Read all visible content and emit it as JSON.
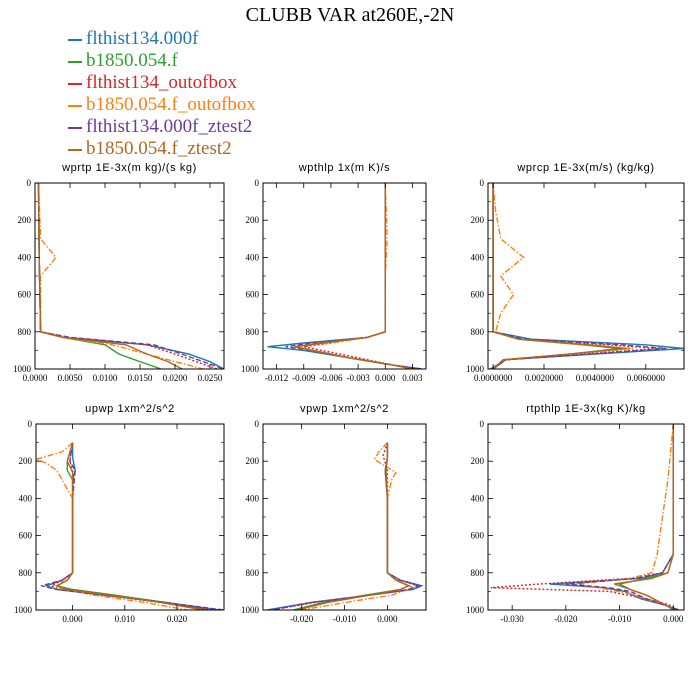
{
  "figure": {
    "title": "CLUBB VAR at260E,-2N"
  },
  "legend": [
    {
      "name": "flthist134.000f",
      "color": "#1f77b4",
      "dash": "solid"
    },
    {
      "name": "b1850.054.f",
      "color": "#2ca02c",
      "dash": "solid"
    },
    {
      "name": "flthist134_outofbox",
      "color": "#d62728",
      "dash": "dotted"
    },
    {
      "name": "b1850.054.f_outofbox",
      "color": "#ff7f0e",
      "dash": "dashdot"
    },
    {
      "name": "flthist134.000f_ztest2",
      "color": "#6a3d9a",
      "dash": "dashed"
    },
    {
      "name": "b1850.054.f_ztest2",
      "color": "#b5651d",
      "dash": "solid"
    }
  ],
  "chart_data": [
    {
      "type": "line",
      "title": "wprtp  1E-3x(m kg)/(s kg)",
      "xlim": [
        0,
        0.027
      ],
      "ylim": [
        0,
        1000
      ],
      "y_inverted": true,
      "x_ticks": [
        "0.0000",
        "0.0050",
        "0.0100",
        "0.0150",
        "0.0200",
        "0.0250"
      ],
      "x_tick_values": [
        0,
        0.005,
        0.01,
        0.015,
        0.02,
        0.025
      ],
      "y_ticks": [
        "0",
        "200",
        "400",
        "600",
        "800",
        "1000"
      ],
      "series": [
        {
          "y": [
            0,
            400,
            800,
            830,
            870,
            920,
            960,
            1000
          ],
          "x": [
            0.0005,
            0.0006,
            0.0008,
            0.004,
            0.016,
            0.022,
            0.025,
            0.027
          ]
        },
        {
          "y": [
            0,
            400,
            800,
            830,
            870,
            920,
            960,
            1000
          ],
          "x": [
            0.0005,
            0.0006,
            0.0008,
            0.004,
            0.01,
            0.012,
            0.015,
            0.018
          ]
        },
        {
          "y": [
            0,
            400,
            800,
            830,
            870,
            920,
            960,
            1000
          ],
          "x": [
            0.0005,
            0.0006,
            0.0008,
            0.005,
            0.016,
            0.02,
            0.023,
            0.026
          ]
        },
        {
          "y": [
            0,
            300,
            400,
            500,
            800,
            830,
            870,
            920,
            960,
            1000
          ],
          "x": [
            0.0005,
            0.0008,
            0.003,
            0.0008,
            0.0008,
            0.004,
            0.011,
            0.016,
            0.02,
            0.024
          ]
        },
        {
          "y": [
            0,
            400,
            800,
            830,
            870,
            920,
            960,
            1000
          ],
          "x": [
            0.0005,
            0.0006,
            0.0008,
            0.005,
            0.017,
            0.021,
            0.024,
            0.027
          ]
        },
        {
          "y": [
            0,
            400,
            800,
            830,
            870,
            920,
            960,
            1000
          ],
          "x": [
            0.0005,
            0.0006,
            0.0008,
            0.004,
            0.013,
            0.016,
            0.019,
            0.021
          ]
        }
      ]
    },
    {
      "type": "line",
      "title": "wpthlp  1x(m K)/s",
      "xlim": [
        -0.0135,
        0.0045
      ],
      "ylim": [
        0,
        1000
      ],
      "y_inverted": true,
      "x_ticks": [
        "-0.012",
        "-0.009",
        "-0.006",
        "-0.003",
        "0.000",
        "0.003"
      ],
      "x_tick_values": [
        -0.012,
        -0.009,
        -0.006,
        -0.003,
        0,
        0.003
      ],
      "y_ticks": [
        "0",
        "200",
        "400",
        "600",
        "800",
        "1000"
      ],
      "series": [
        {
          "y": [
            0,
            500,
            800,
            830,
            860,
            880,
            900,
            940,
            980,
            1000
          ],
          "x": [
            0.0,
            0.0,
            0.0,
            -0.002,
            -0.009,
            -0.013,
            -0.009,
            -0.004,
            0.001,
            0.004
          ]
        },
        {
          "y": [
            0,
            500,
            800,
            830,
            860,
            880,
            900,
            940,
            980,
            1000
          ],
          "x": [
            0.0,
            0.0,
            0.0,
            -0.002,
            -0.007,
            -0.01,
            -0.008,
            -0.004,
            0.001,
            0.003
          ]
        },
        {
          "y": [
            0,
            500,
            800,
            830,
            860,
            880,
            900,
            940,
            980,
            1000
          ],
          "x": [
            0.0,
            0.0,
            0.0,
            -0.002,
            -0.006,
            -0.009,
            -0.007,
            -0.003,
            0.001,
            0.004
          ]
        },
        {
          "y": [
            0,
            300,
            500,
            800,
            830,
            860,
            880,
            900,
            940,
            980,
            1000
          ],
          "x": [
            0.0,
            0.0002,
            0.0,
            0.0,
            -0.002,
            -0.006,
            -0.01,
            -0.008,
            -0.004,
            0.001,
            0.003
          ]
        },
        {
          "y": [
            0,
            500,
            800,
            830,
            860,
            880,
            900,
            940,
            980,
            1000
          ],
          "x": [
            0.0,
            0.0,
            0.0,
            -0.002,
            -0.008,
            -0.011,
            -0.008,
            -0.004,
            0.001,
            0.004
          ]
        },
        {
          "y": [
            0,
            500,
            800,
            830,
            860,
            880,
            900,
            940,
            980,
            1000
          ],
          "x": [
            0.0,
            0.0,
            0.0,
            -0.002,
            -0.007,
            -0.01,
            -0.008,
            -0.004,
            0.001,
            0.003
          ]
        }
      ]
    },
    {
      "type": "line",
      "title": "wprcp  1E-3x(m/s) (kg/kg)",
      "xlim": [
        -0.0002,
        0.0075
      ],
      "ylim": [
        0,
        1000
      ],
      "y_inverted": true,
      "x_ticks": [
        "0.0000000",
        "0.0020000",
        "0.0040000",
        "0.0060000"
      ],
      "x_tick_values": [
        0,
        0.002,
        0.004,
        0.006
      ],
      "y_ticks": [
        "0",
        "200",
        "400",
        "600",
        "800",
        "1000"
      ],
      "series": [
        {
          "y": [
            0,
            800,
            840,
            870,
            890,
            920,
            950,
            1000
          ],
          "x": [
            0.0,
            0.0,
            0.0015,
            0.006,
            0.0075,
            0.004,
            0.0005,
            -0.0001
          ]
        },
        {
          "y": [
            0,
            800,
            840,
            870,
            890,
            920,
            950,
            1000
          ],
          "x": [
            0.0,
            0.0,
            0.001,
            0.0035,
            0.005,
            0.003,
            0.0005,
            0.0
          ]
        },
        {
          "y": [
            0,
            800,
            840,
            870,
            890,
            920,
            950,
            1000
          ],
          "x": [
            0.0,
            0.0,
            0.0012,
            0.0045,
            0.0065,
            0.0035,
            0.0005,
            0.0
          ]
        },
        {
          "y": [
            0,
            150,
            300,
            400,
            500,
            600,
            700,
            800,
            840,
            870,
            890,
            920,
            950,
            1000
          ],
          "x": [
            0.0,
            0.0001,
            0.0003,
            0.0012,
            0.0003,
            0.0008,
            0.0003,
            0.0001,
            0.001,
            0.0035,
            0.0055,
            0.003,
            0.0004,
            0.0
          ]
        },
        {
          "y": [
            0,
            800,
            840,
            870,
            890,
            920,
            950,
            1000
          ],
          "x": [
            0.0,
            0.0,
            0.0012,
            0.005,
            0.0068,
            0.0038,
            0.0005,
            0.0
          ]
        },
        {
          "y": [
            0,
            800,
            840,
            870,
            890,
            920,
            950,
            1000
          ],
          "x": [
            0.0,
            0.0,
            0.001,
            0.0038,
            0.0052,
            0.003,
            0.0004,
            0.0
          ]
        }
      ]
    },
    {
      "type": "line",
      "title": "upwp  1xm^2/s^2",
      "xlim": [
        -0.007,
        0.029
      ],
      "ylim": [
        0,
        1000
      ],
      "y_inverted": true,
      "x_ticks": [
        "0.000",
        "0.010",
        "0.020"
      ],
      "x_tick_values": [
        0,
        0.01,
        0.02
      ],
      "y_ticks": [
        "0",
        "200",
        "400",
        "600",
        "800",
        "1000"
      ],
      "series": [
        {
          "y": [
            100,
            180,
            250,
            300,
            400,
            800,
            840,
            870,
            890,
            920,
            960,
            1000
          ],
          "x": [
            0.0,
            0.0,
            0.0005,
            0.0,
            0.0,
            0.0,
            -0.002,
            -0.005,
            -0.003,
            0.006,
            0.018,
            0.028
          ]
        },
        {
          "y": [
            100,
            200,
            250,
            300,
            400,
            800,
            840,
            870,
            890,
            920,
            960,
            1000
          ],
          "x": [
            0.0,
            -0.001,
            -0.001,
            0.0,
            0.0,
            0.0,
            -0.001,
            -0.003,
            0.0,
            0.008,
            0.018,
            0.026
          ]
        },
        {
          "y": [
            100,
            200,
            280,
            400,
            800,
            840,
            870,
            890,
            920,
            960,
            1000
          ],
          "x": [
            0.0,
            -0.0005,
            0.0003,
            0.0,
            0.0,
            -0.002,
            -0.004,
            -0.002,
            0.006,
            0.017,
            0.027
          ]
        },
        {
          "y": [
            100,
            150,
            190,
            210,
            250,
            300,
            350,
            400,
            800,
            850,
            880,
            920,
            960,
            1000
          ],
          "x": [
            0.0,
            -0.002,
            -0.007,
            -0.005,
            -0.003,
            -0.002,
            -0.001,
            0.0,
            0.0,
            -0.002,
            -0.003,
            0.004,
            0.014,
            0.022
          ]
        },
        {
          "y": [
            100,
            200,
            250,
            400,
            800,
            840,
            870,
            890,
            920,
            960,
            1000
          ],
          "x": [
            0.0,
            -0.0005,
            0.0005,
            0.0,
            0.0,
            -0.002,
            -0.006,
            -0.003,
            0.006,
            0.018,
            0.029
          ]
        },
        {
          "y": [
            100,
            200,
            260,
            400,
            800,
            840,
            870,
            890,
            920,
            960,
            1000
          ],
          "x": [
            0.0,
            -0.001,
            0.0,
            0.0,
            0.0,
            -0.001,
            -0.003,
            -0.001,
            0.007,
            0.017,
            0.025
          ]
        }
      ]
    },
    {
      "type": "line",
      "title": "vpwp  1xm^2/s^2",
      "xlim": [
        -0.029,
        0.009
      ],
      "ylim": [
        0,
        1000
      ],
      "y_inverted": true,
      "x_ticks": [
        "-0.020",
        "-0.010",
        "0.000"
      ],
      "x_tick_values": [
        -0.02,
        -0.01,
        0
      ],
      "y_ticks": [
        "0",
        "200",
        "400",
        "600",
        "800",
        "1000"
      ],
      "series": [
        {
          "y": [
            100,
            180,
            250,
            400,
            800,
            840,
            870,
            890,
            920,
            960,
            1000
          ],
          "x": [
            0.0,
            0.0,
            -0.0005,
            0.0,
            0.0,
            0.003,
            0.008,
            0.006,
            -0.004,
            -0.018,
            -0.028
          ]
        },
        {
          "y": [
            100,
            180,
            250,
            400,
            800,
            840,
            870,
            890,
            920,
            960,
            1000
          ],
          "x": [
            0.0,
            0.0,
            -0.0005,
            0.0,
            0.0,
            0.002,
            0.005,
            0.003,
            -0.005,
            -0.015,
            -0.022
          ]
        },
        {
          "y": [
            100,
            170,
            250,
            400,
            800,
            840,
            870,
            890,
            920,
            960,
            1000
          ],
          "x": [
            0.0,
            -0.001,
            0.0,
            0.0,
            0.0,
            0.003,
            0.007,
            0.005,
            -0.004,
            -0.017,
            -0.027
          ]
        },
        {
          "y": [
            100,
            150,
            190,
            220,
            260,
            300,
            400,
            800,
            850,
            880,
            920,
            960,
            1000
          ],
          "x": [
            0.0,
            -0.002,
            -0.003,
            -0.001,
            0.002,
            0.001,
            0.0,
            0.0,
            0.003,
            0.006,
            0.001,
            -0.01,
            -0.02
          ]
        },
        {
          "y": [
            100,
            180,
            250,
            400,
            800,
            840,
            870,
            890,
            920,
            960,
            1000
          ],
          "x": [
            0.0,
            0.0,
            -0.0005,
            0.0,
            0.0,
            0.003,
            0.0075,
            0.005,
            -0.004,
            -0.018,
            -0.027
          ]
        },
        {
          "y": [
            100,
            180,
            250,
            400,
            800,
            840,
            870,
            890,
            920,
            960,
            1000
          ],
          "x": [
            0.0,
            0.0,
            -0.0003,
            0.0,
            0.0,
            0.002,
            0.005,
            0.003,
            -0.004,
            -0.014,
            -0.021
          ]
        }
      ]
    },
    {
      "type": "line",
      "title": "rtpthlp  1E-3x(kg K)/kg",
      "xlim": [
        -0.0345,
        0.002
      ],
      "ylim": [
        0,
        1000
      ],
      "y_inverted": true,
      "x_ticks": [
        "-0.030",
        "-0.020",
        "-0.010",
        "0.000"
      ],
      "x_tick_values": [
        -0.03,
        -0.02,
        -0.01,
        0
      ],
      "y_ticks": [
        "0",
        "200",
        "400",
        "600",
        "800",
        "1000"
      ],
      "series": [
        {
          "y": [
            0,
            700,
            800,
            830,
            860,
            880,
            900,
            940,
            970,
            1000
          ],
          "x": [
            0.0,
            0.0,
            -0.002,
            -0.006,
            -0.023,
            -0.013,
            -0.009,
            -0.006,
            -0.002,
            0.001
          ]
        },
        {
          "y": [
            0,
            700,
            800,
            830,
            860,
            890,
            920,
            950,
            980,
            1000
          ],
          "x": [
            0.0,
            0.0,
            -0.001,
            -0.005,
            -0.01,
            -0.008,
            -0.005,
            -0.003,
            -0.001,
            0.0
          ]
        },
        {
          "y": [
            0,
            700,
            800,
            830,
            860,
            880,
            900,
            940,
            970,
            1000
          ],
          "x": [
            0.0,
            0.0,
            -0.002,
            -0.008,
            -0.025,
            -0.034,
            -0.012,
            -0.005,
            -0.001,
            0.001
          ]
        },
        {
          "y": [
            0,
            300,
            500,
            700,
            800,
            830,
            860,
            890,
            920,
            950,
            980,
            1000
          ],
          "x": [
            0.0,
            -0.001,
            -0.002,
            -0.003,
            -0.004,
            -0.008,
            -0.018,
            -0.012,
            -0.007,
            -0.004,
            -0.001,
            0.0
          ]
        },
        {
          "y": [
            0,
            700,
            800,
            830,
            860,
            880,
            900,
            940,
            970,
            1000
          ],
          "x": [
            0.0,
            0.0,
            -0.002,
            -0.007,
            -0.02,
            -0.012,
            -0.008,
            -0.005,
            -0.002,
            0.001
          ]
        },
        {
          "y": [
            0,
            700,
            800,
            830,
            860,
            890,
            920,
            950,
            980,
            1000
          ],
          "x": [
            0.0,
            0.0,
            -0.001,
            -0.004,
            -0.011,
            -0.008,
            -0.005,
            -0.003,
            -0.001,
            0.0
          ]
        }
      ]
    }
  ]
}
